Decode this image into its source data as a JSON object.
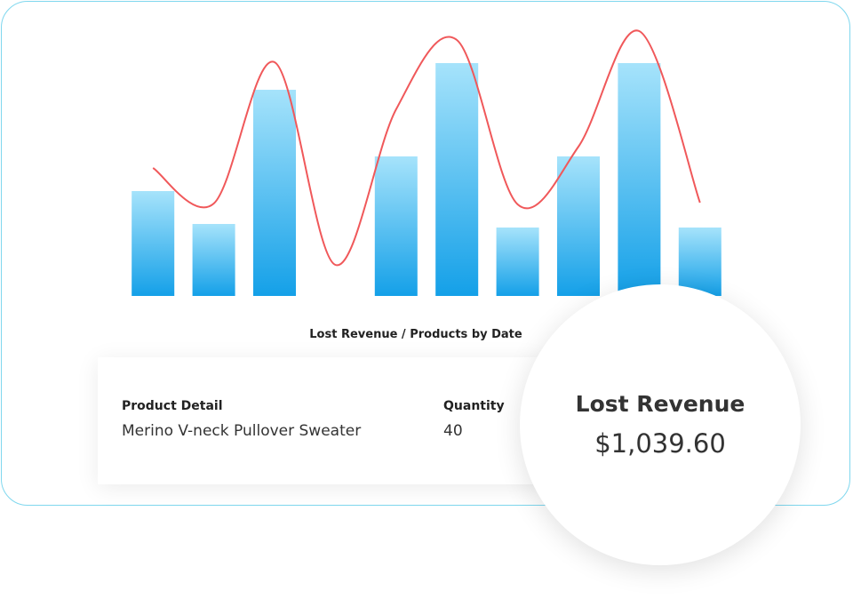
{
  "chart_data": {
    "type": "bar",
    "title": "Lost Revenue / Products by Date",
    "categories": [
      null,
      null,
      null,
      null,
      null,
      null,
      null,
      null,
      null,
      null
    ],
    "series": [
      {
        "type": "bar",
        "color": "#14a0e8",
        "values": [
          118,
          81,
          232,
          null,
          157,
          262,
          77,
          157,
          262,
          77
        ]
      },
      {
        "type": "line",
        "color": "#f0585a",
        "values": [
          144,
          104,
          263,
          35,
          210,
          288,
          103,
          168,
          298,
          105
        ]
      }
    ],
    "ylim": [
      0,
      300
    ]
  },
  "table": {
    "headers": [
      "Product Detail",
      "Quantity"
    ],
    "rows": [
      [
        "Merino V-neck Pullover Sweater",
        "40"
      ]
    ]
  },
  "summary": {
    "label": "Lost Revenue",
    "value": "$1,039.60"
  }
}
